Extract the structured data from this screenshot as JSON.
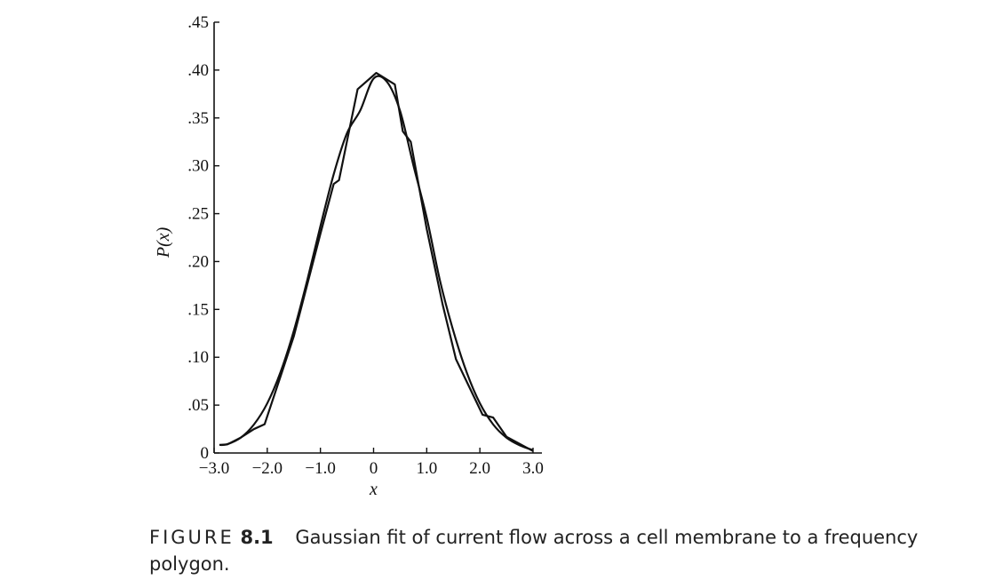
{
  "chart_data": {
    "type": "line",
    "xlabel": "x",
    "ylabel": "P(x)",
    "xlim": [
      -3.0,
      3.0
    ],
    "ylim": [
      0,
      0.45
    ],
    "x_ticks": [
      -3.0,
      -2.0,
      -1.0,
      0,
      1.0,
      2.0,
      3.0
    ],
    "x_tick_labels": [
      "−3.0",
      "−2.0",
      "−1.0",
      "0",
      "1.0",
      "2.0",
      "3.0"
    ],
    "y_ticks": [
      0,
      0.05,
      0.1,
      0.15,
      0.2,
      0.25,
      0.3,
      0.35,
      0.4,
      0.45
    ],
    "y_tick_labels": [
      "0",
      ".05",
      ".10",
      ".15",
      ".20",
      ".25",
      ".30",
      ".35",
      ".40",
      ".45"
    ],
    "grid": false,
    "legend": "none",
    "series": [
      {
        "style": "smooth-curve",
        "x": [
          -2.9,
          -2.75,
          -2.5,
          -2.25,
          -2.0,
          -1.75,
          -1.5,
          -1.25,
          -1.0,
          -0.75,
          -0.5,
          -0.25,
          0.0,
          0.25,
          0.5,
          0.75,
          1.0,
          1.25,
          1.5,
          1.75,
          2.0,
          2.25,
          2.5,
          2.75,
          3.0
        ],
        "y": [
          0.0084,
          0.0092,
          0.016,
          0.0298,
          0.0519,
          0.0845,
          0.1276,
          0.1799,
          0.2369,
          0.2912,
          0.3341,
          0.3579,
          0.3911,
          0.3879,
          0.3571,
          0.3004,
          0.2458,
          0.1799,
          0.1276,
          0.0845,
          0.0519,
          0.0298,
          0.016,
          0.008,
          0.003
        ]
      },
      {
        "style": "frequency-polygon",
        "x": [
          -2.9,
          -2.75,
          -2.5,
          -2.25,
          -2.05,
          -1.75,
          -1.5,
          -1.0,
          -0.75,
          -0.65,
          -0.3,
          0.05,
          0.4,
          0.55,
          0.7,
          1.0,
          1.3,
          1.55,
          2.05,
          2.25,
          2.5,
          3.0
        ],
        "y": [
          0.0084,
          0.009,
          0.016,
          0.025,
          0.03,
          0.08,
          0.122,
          0.229,
          0.281,
          0.285,
          0.38,
          0.397,
          0.385,
          0.336,
          0.325,
          0.234,
          0.155,
          0.098,
          0.04,
          0.037,
          0.017,
          0.002
        ]
      }
    ]
  },
  "caption": {
    "figure_word": "FIGURE",
    "figure_number": "8.1",
    "text": "Gaussian fit of current flow across a cell membrane to a frequency polygon."
  }
}
